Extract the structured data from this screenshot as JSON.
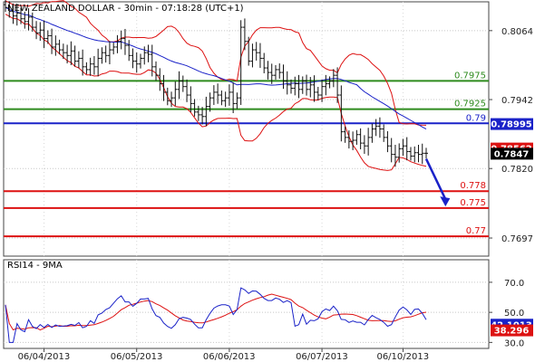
{
  "chart_data": [
    {
      "type": "candlestick",
      "title": "NEW ZEALAND DOLLAR - 30min - 07:18:28 (UTC+1)",
      "x_tick_labels": [
        "06/04/2013",
        "06/05/2013",
        "06/06/2013",
        "06/07/2013",
        "06/10/2013"
      ],
      "y_tick_labels": [
        "0.8064",
        "0.7942",
        "0.7820",
        "0.7697"
      ],
      "y_ticks": [
        0.8064,
        0.7942,
        0.782,
        0.7697
      ],
      "ylim": [
        0.7665,
        0.8115
      ],
      "levels": [
        {
          "label": "0.7975",
          "value": 0.7975,
          "color": "#2e8b1e"
        },
        {
          "label": "0.7925",
          "value": 0.7925,
          "color": "#2e8b1e"
        },
        {
          "label": "0.79",
          "value": 0.79,
          "color": "#1a22c8"
        },
        {
          "label": "0.778",
          "value": 0.778,
          "color": "#dd1111"
        },
        {
          "label": "0.775",
          "value": 0.775,
          "color": "#dd1111"
        },
        {
          "label": "0.77",
          "value": 0.77,
          "color": "#dd1111"
        }
      ],
      "price_boxes": [
        {
          "label": "0.78995",
          "value": 0.78995,
          "color": "#1a22c8"
        },
        {
          "label": "0.78562",
          "value": 0.78562,
          "color": "#dd1111"
        },
        {
          "label": "0.7847",
          "value": 0.7847,
          "color": "#000000"
        }
      ],
      "forecast_arrow": {
        "from_index": 109,
        "from_value": 0.7837,
        "to_index": 114,
        "to_value": 0.7756,
        "color": "#1a22c8"
      },
      "close": [
        0.8105,
        0.8098,
        0.809,
        0.8095,
        0.8085,
        0.808,
        0.8088,
        0.807,
        0.806,
        0.8065,
        0.805,
        0.8055,
        0.8035,
        0.804,
        0.803,
        0.8025,
        0.802,
        0.8028,
        0.801,
        0.8015,
        0.8,
        0.7995,
        0.8005,
        0.8,
        0.8015,
        0.8025,
        0.802,
        0.803,
        0.8035,
        0.8045,
        0.805,
        0.8038,
        0.802,
        0.801,
        0.8005,
        0.8015,
        0.8025,
        0.8022,
        0.8,
        0.7985,
        0.797,
        0.7955,
        0.794,
        0.7945,
        0.796,
        0.7975,
        0.7965,
        0.795,
        0.7935,
        0.792,
        0.7915,
        0.7912,
        0.793,
        0.7945,
        0.7955,
        0.795,
        0.794,
        0.7945,
        0.7955,
        0.7935,
        0.7945,
        0.807,
        0.8045,
        0.801,
        0.803,
        0.8025,
        0.8015,
        0.7998,
        0.799,
        0.7985,
        0.7995,
        0.799,
        0.7975,
        0.7968,
        0.7962,
        0.797,
        0.796,
        0.7975,
        0.796,
        0.7968,
        0.7955,
        0.795,
        0.7965,
        0.797,
        0.7975,
        0.7985,
        0.795,
        0.7885,
        0.7875,
        0.7868,
        0.787,
        0.788,
        0.7865,
        0.786,
        0.7875,
        0.789,
        0.7895,
        0.789,
        0.7875,
        0.786,
        0.7845,
        0.784,
        0.7855,
        0.786,
        0.785,
        0.7842,
        0.7848,
        0.7845,
        0.7847,
        0.7847
      ],
      "rsi": {
        "label": "RSI14 - 9MA",
        "y_tick_labels": [
          "70.0",
          "50.0",
          "30.0"
        ],
        "y_ticks": [
          70,
          50,
          30
        ],
        "ylim": [
          26,
          85
        ],
        "boxes": [
          {
            "label": "42.1013",
            "value": 42.1013,
            "color": "#1a22c8"
          },
          {
            "label": "38.296",
            "value": 38.296,
            "color": "#dd1111"
          }
        ]
      }
    }
  ]
}
